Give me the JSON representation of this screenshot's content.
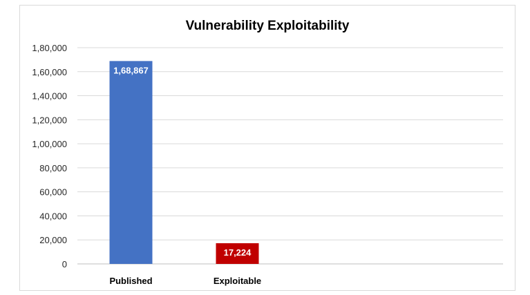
{
  "chart_data": {
    "type": "bar",
    "title": "Vulnerability Exploitability",
    "xlabel": "",
    "ylabel": "",
    "categories": [
      "Published",
      "Exploitable"
    ],
    "values": [
      168867,
      17224
    ],
    "data_labels": [
      "1,68,867",
      "17,224"
    ],
    "bar_colors": [
      "#4472c4",
      "#c00000"
    ],
    "ylim": [
      0,
      180000
    ],
    "yticks": [
      0,
      20000,
      40000,
      60000,
      80000,
      100000,
      120000,
      140000,
      160000,
      180000
    ],
    "ytick_labels": [
      "0",
      "20,000",
      "40,000",
      "60,000",
      "80,000",
      "1,00,000",
      "1,20,000",
      "1,40,000",
      "1,60,000",
      "1,80,000"
    ],
    "grid": true,
    "legend": "none"
  }
}
